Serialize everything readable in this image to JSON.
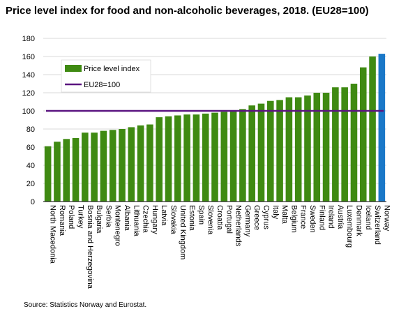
{
  "title": "Price level index for food and non-alcoholic beverages, 2018. (EU28=100)",
  "source": "Source: Statistics Norway and Eurostat.",
  "colors": {
    "bar": "#3f8a12",
    "highlight": "#1a78c8",
    "reference": "#5b1480",
    "grid": "#d9d9d9"
  },
  "chart_data": {
    "type": "bar",
    "categories": [
      "North Macedonia",
      "Romania",
      "Poland",
      "Turkey",
      "Bosnia and Herzegovina",
      "Bulgaria",
      "Serbia",
      "Montenegro",
      "Albania",
      "Lithuania",
      "Czechia",
      "Hungary",
      "Latvia",
      "Slovakia",
      "United Kingdom",
      "Estonia",
      "Spain",
      "Slovenia",
      "Croatia",
      "Portugal",
      "Netherlands",
      "Germany",
      "Greece",
      "Cyprus",
      "Italy",
      "Malta",
      "Belgium",
      "France",
      "Sweden",
      "Finland",
      "Ireland",
      "Austria",
      "Luxembourg",
      "Denmark",
      "Iceland",
      "Switzerland",
      "Norway"
    ],
    "values": [
      61,
      66,
      69,
      70,
      76,
      76,
      78,
      79,
      80,
      82,
      84,
      85,
      93,
      94,
      95,
      96,
      96,
      97,
      98,
      99,
      100,
      102,
      106,
      108,
      111,
      112,
      115,
      115,
      117,
      120,
      120,
      126,
      126,
      130,
      148,
      160,
      163
    ],
    "highlight_index": 36,
    "reference_line": {
      "value": 100,
      "label": "EU28=100"
    },
    "series": [
      {
        "name": "Price level index"
      }
    ],
    "ylim": [
      0,
      180
    ],
    "yticks": [
      0,
      20,
      40,
      60,
      80,
      100,
      120,
      140,
      160,
      180
    ],
    "grid": true,
    "legend": "top-left"
  }
}
